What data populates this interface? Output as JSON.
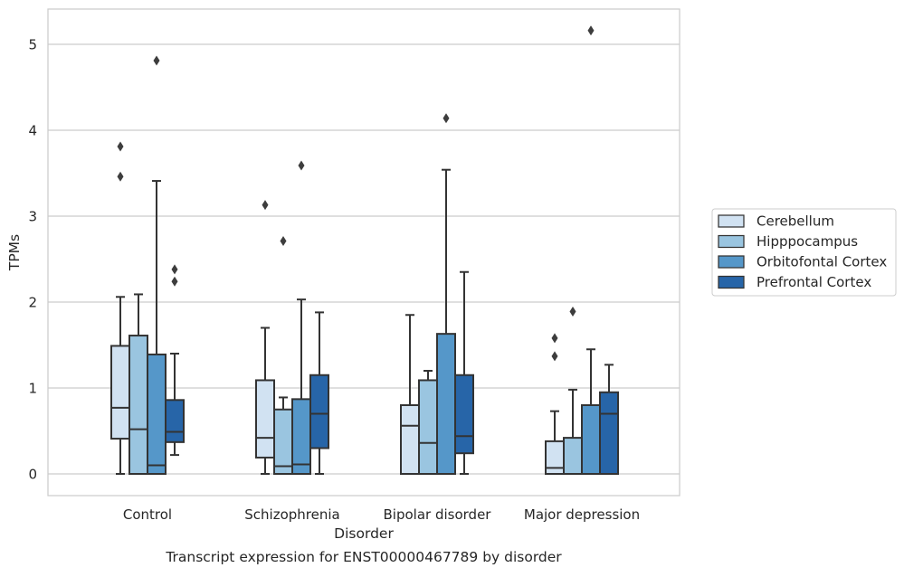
{
  "chart_data": {
    "type": "box",
    "title": "Transcript expression for ENST00000467789 by disorder",
    "xlabel": "Disorder",
    "ylabel": "TPMs",
    "ylim": [
      -0.25,
      5.42
    ],
    "yticks": [
      0,
      1,
      2,
      3,
      4,
      5
    ],
    "grid": "horizontal",
    "legend_position": "right",
    "categories": [
      "Control",
      "Schizophrenia",
      "Bipolar disorder",
      "Major depression"
    ],
    "series": [
      {
        "name": "Cerebellum",
        "color": "#d1e2f2",
        "boxes": [
          {
            "whislo": 0.0,
            "q1": 0.41,
            "med": 0.77,
            "q3": 1.49,
            "whishi": 2.06,
            "fliers": [
              3.46,
              3.81
            ]
          },
          {
            "whislo": 0.0,
            "q1": 0.19,
            "med": 0.42,
            "q3": 1.09,
            "whishi": 1.7,
            "fliers": [
              3.13
            ]
          },
          {
            "whislo": 0.0,
            "q1": 0.0,
            "med": 0.56,
            "q3": 0.8,
            "whishi": 1.85,
            "fliers": []
          },
          {
            "whislo": 0.0,
            "q1": 0.0,
            "med": 0.07,
            "q3": 0.38,
            "whishi": 0.73,
            "fliers": [
              1.37,
              1.58
            ]
          }
        ]
      },
      {
        "name": "Hipppocampus",
        "color": "#9ac5e0",
        "boxes": [
          {
            "whislo": 0.0,
            "q1": 0.0,
            "med": 0.52,
            "q3": 1.61,
            "whishi": 2.09,
            "fliers": []
          },
          {
            "whislo": 0.0,
            "q1": 0.0,
            "med": 0.09,
            "q3": 0.75,
            "whishi": 0.89,
            "fliers": [
              2.71
            ]
          },
          {
            "whislo": 0.0,
            "q1": 0.0,
            "med": 0.36,
            "q3": 1.09,
            "whishi": 1.2,
            "fliers": []
          },
          {
            "whislo": 0.0,
            "q1": 0.0,
            "med": 0.0,
            "q3": 0.42,
            "whishi": 0.98,
            "fliers": [
              1.89
            ]
          }
        ]
      },
      {
        "name": "Orbitofontal Cortex",
        "color": "#5597c9",
        "boxes": [
          {
            "whislo": 0.0,
            "q1": 0.0,
            "med": 0.1,
            "q3": 1.39,
            "whishi": 3.41,
            "fliers": [
              4.81
            ]
          },
          {
            "whislo": 0.0,
            "q1": 0.0,
            "med": 0.11,
            "q3": 0.87,
            "whishi": 2.03,
            "fliers": [
              3.59
            ]
          },
          {
            "whislo": 0.0,
            "q1": 0.0,
            "med": 0.0,
            "q3": 1.63,
            "whishi": 3.54,
            "fliers": [
              4.14
            ]
          },
          {
            "whislo": 0.0,
            "q1": 0.0,
            "med": 0.0,
            "q3": 0.8,
            "whishi": 1.45,
            "fliers": [
              5.16
            ]
          }
        ]
      },
      {
        "name": "Prefrontal Cortex",
        "color": "#2765a8",
        "boxes": [
          {
            "whislo": 0.22,
            "q1": 0.37,
            "med": 0.49,
            "q3": 0.86,
            "whishi": 1.4,
            "fliers": [
              2.24,
              2.38
            ]
          },
          {
            "whislo": 0.0,
            "q1": 0.3,
            "med": 0.7,
            "q3": 1.15,
            "whishi": 1.88,
            "fliers": []
          },
          {
            "whislo": 0.0,
            "q1": 0.24,
            "med": 0.44,
            "q3": 1.15,
            "whishi": 2.35,
            "fliers": []
          },
          {
            "whislo": 0.0,
            "q1": 0.0,
            "med": 0.7,
            "q3": 0.95,
            "whishi": 1.27,
            "fliers": []
          }
        ]
      }
    ],
    "colors": {
      "gridline": "#cccccc",
      "axes_edge": "#cccccc",
      "box_edge": "#333333",
      "text": "#262626"
    }
  }
}
